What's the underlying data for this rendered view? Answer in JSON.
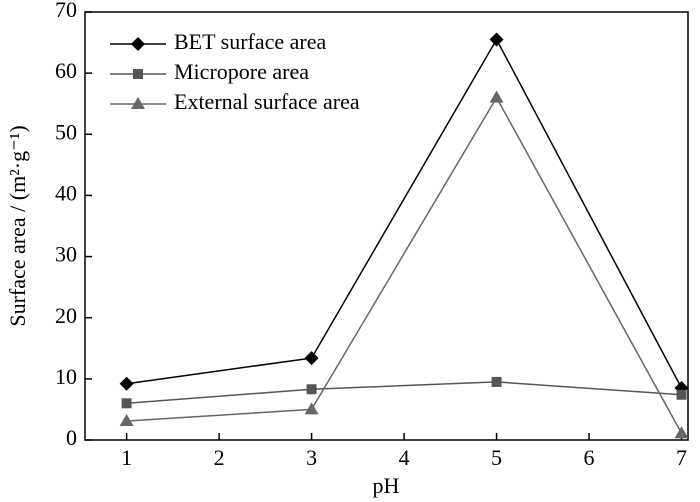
{
  "chart_data": {
    "type": "line",
    "xlabel": "pH",
    "ylabel": "Surface area / (m²·g⁻¹)",
    "x": [
      1,
      3,
      5,
      7
    ],
    "xlim": [
      0.55,
      7.07
    ],
    "xticks": [
      1,
      2,
      3,
      4,
      5,
      6,
      7
    ],
    "ylim": [
      0,
      70
    ],
    "yticks": [
      0,
      10,
      20,
      30,
      40,
      50,
      60,
      70
    ],
    "legend": "upper left",
    "series": [
      {
        "name": "BET surface area",
        "color": "#000000",
        "marker": "diamond",
        "values": [
          9.2,
          13.4,
          65.5,
          8.5
        ]
      },
      {
        "name": "Micropore area",
        "color": "#555555",
        "marker": "square",
        "values": [
          6.0,
          8.3,
          9.5,
          7.4
        ]
      },
      {
        "name": "External surface area",
        "color": "#666666",
        "marker": "triangle",
        "values": [
          3.1,
          5.0,
          56.0,
          1.1
        ]
      }
    ]
  }
}
